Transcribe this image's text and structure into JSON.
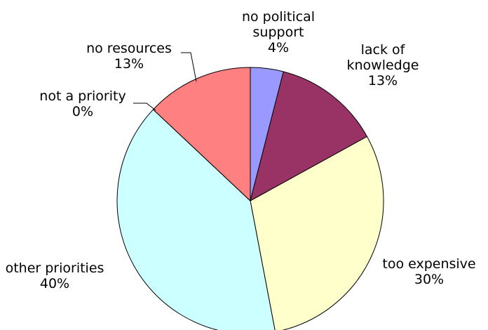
{
  "chart_data": {
    "type": "pie",
    "title": "",
    "slices": [
      {
        "label_lines": [
          "no political",
          "support"
        ],
        "value": 4,
        "value_label": "4%",
        "color": "#9999ff"
      },
      {
        "label_lines": [
          "lack of",
          "knowledge"
        ],
        "value": 13,
        "value_label": "13%",
        "color": "#993366"
      },
      {
        "label_lines": [
          "too expensive"
        ],
        "value": 30,
        "value_label": "30%",
        "color": "#ffffcc"
      },
      {
        "label_lines": [
          "other priorities"
        ],
        "value": 40,
        "value_label": "40%",
        "color": "#ccffff"
      },
      {
        "label_lines": [
          "not a priority"
        ],
        "value": 0,
        "value_label": "0%",
        "color": "#ff8080"
      },
      {
        "label_lines": [
          "no resources"
        ],
        "value": 13,
        "value_label": "13%",
        "color": "#ff8080"
      }
    ],
    "start_angle": "12 o'clock",
    "direction": "clockwise",
    "legend": "none"
  }
}
